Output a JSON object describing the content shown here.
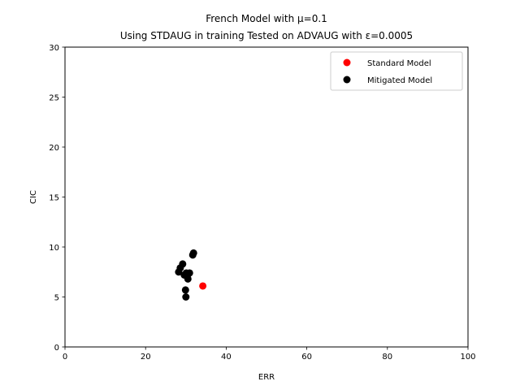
{
  "chart_data": {
    "type": "scatter",
    "title": "French Model with μ=0.1",
    "subtitle": "Using STDAUG in training Tested on ADVAUG with ε=0.0005",
    "xlabel": "ERR",
    "ylabel": "CIC",
    "xlim": [
      0,
      100
    ],
    "ylim": [
      0,
      30
    ],
    "xticks": [
      0,
      20,
      40,
      60,
      80,
      100
    ],
    "yticks": [
      0,
      5,
      10,
      15,
      20,
      25,
      30
    ],
    "grid": false,
    "legend_position": "top-right",
    "series": [
      {
        "name": "Standard Model",
        "color": "#ff0000",
        "points": [
          {
            "x": 34.2,
            "y": 6.1
          }
        ]
      },
      {
        "name": "Mitigated Model",
        "color": "#000000",
        "points": [
          {
            "x": 28.2,
            "y": 7.5
          },
          {
            "x": 28.6,
            "y": 7.9
          },
          {
            "x": 29.2,
            "y": 8.3
          },
          {
            "x": 29.6,
            "y": 7.2
          },
          {
            "x": 30.1,
            "y": 7.4
          },
          {
            "x": 30.6,
            "y": 7.3
          },
          {
            "x": 30.9,
            "y": 7.4
          },
          {
            "x": 30.5,
            "y": 6.8
          },
          {
            "x": 29.9,
            "y": 5.7
          },
          {
            "x": 30.0,
            "y": 5.0
          },
          {
            "x": 31.7,
            "y": 9.2
          },
          {
            "x": 31.9,
            "y": 9.4
          }
        ]
      }
    ]
  }
}
